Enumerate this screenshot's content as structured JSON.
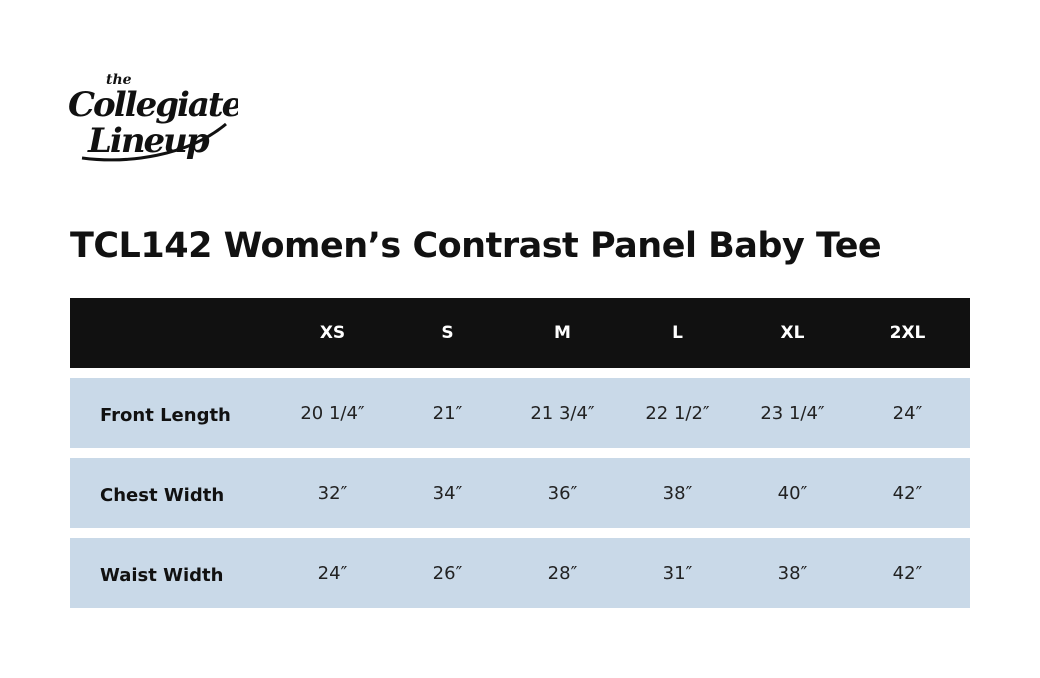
{
  "logo": {
    "line1": "the",
    "line2": "Collegiate",
    "line3": "Lineup"
  },
  "title": "TCL142 Women’s Contrast Panel Baby Tee",
  "table": {
    "header": [
      "",
      "XS",
      "S",
      "M",
      "L",
      "XL",
      "2XL"
    ],
    "rows": [
      {
        "label": "Front Length",
        "values": [
          "20 1/4″",
          "21″",
          "21 3/4″",
          "22 1/2″",
          "23 1/4″",
          "24″"
        ]
      },
      {
        "label": "Chest Width",
        "values": [
          "32″",
          "34″",
          "36″",
          "38″",
          "40″",
          "42″"
        ]
      },
      {
        "label": "Waist Width",
        "values": [
          "24″",
          "26″",
          "28″",
          "31″",
          "38″",
          "42″"
        ]
      }
    ]
  },
  "colors": {
    "header_bg": "#111111",
    "row_bg": "#c9d9e8",
    "text": "#111111"
  }
}
